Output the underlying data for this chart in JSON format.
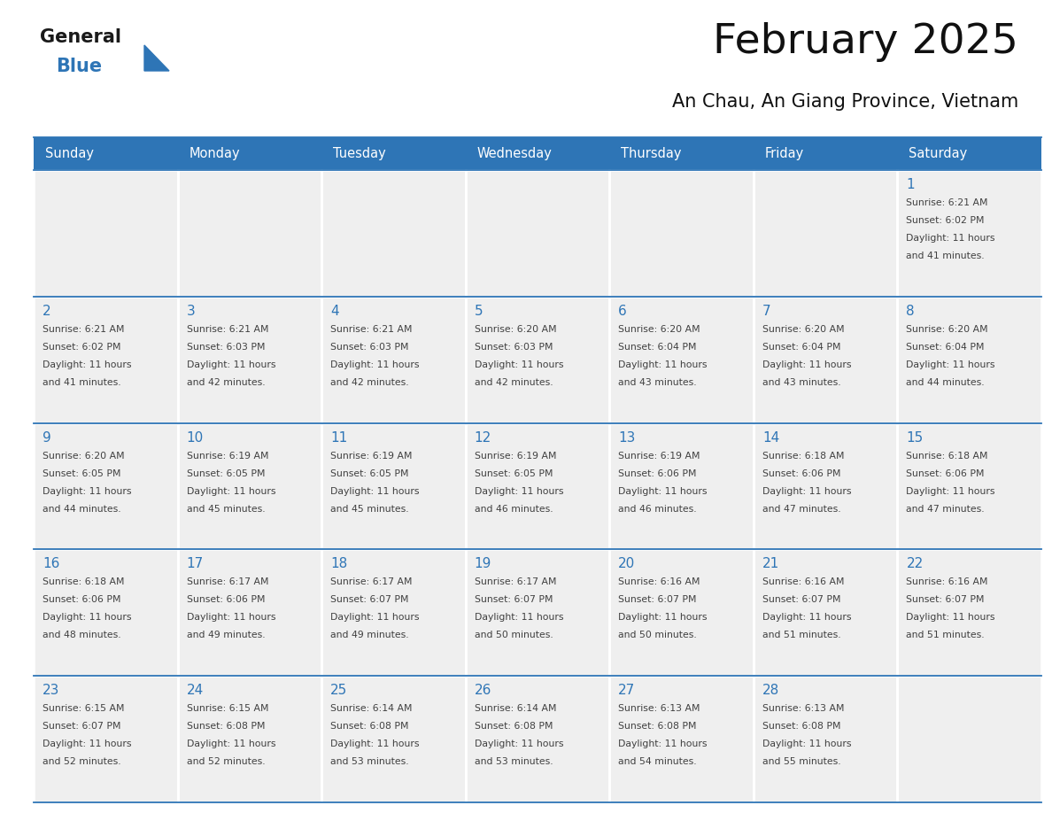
{
  "title": "February 2025",
  "subtitle": "An Chau, An Giang Province, Vietnam",
  "days_of_week": [
    "Sunday",
    "Monday",
    "Tuesday",
    "Wednesday",
    "Thursday",
    "Friday",
    "Saturday"
  ],
  "header_bg": "#2E75B6",
  "header_text": "#FFFFFF",
  "cell_bg": "#EFEFEF",
  "border_color": "#2E75B6",
  "row_border_color": "#2E75B6",
  "day_number_color": "#2E75B6",
  "text_color": "#404040",
  "logo_general_color": "#1a1a1a",
  "logo_blue_color": "#2E75B6",
  "calendar_data": [
    [
      {
        "day": null,
        "info": null
      },
      {
        "day": null,
        "info": null
      },
      {
        "day": null,
        "info": null
      },
      {
        "day": null,
        "info": null
      },
      {
        "day": null,
        "info": null
      },
      {
        "day": null,
        "info": null
      },
      {
        "day": 1,
        "info": "Sunrise: 6:21 AM\nSunset: 6:02 PM\nDaylight: 11 hours\nand 41 minutes."
      }
    ],
    [
      {
        "day": 2,
        "info": "Sunrise: 6:21 AM\nSunset: 6:02 PM\nDaylight: 11 hours\nand 41 minutes."
      },
      {
        "day": 3,
        "info": "Sunrise: 6:21 AM\nSunset: 6:03 PM\nDaylight: 11 hours\nand 42 minutes."
      },
      {
        "day": 4,
        "info": "Sunrise: 6:21 AM\nSunset: 6:03 PM\nDaylight: 11 hours\nand 42 minutes."
      },
      {
        "day": 5,
        "info": "Sunrise: 6:20 AM\nSunset: 6:03 PM\nDaylight: 11 hours\nand 42 minutes."
      },
      {
        "day": 6,
        "info": "Sunrise: 6:20 AM\nSunset: 6:04 PM\nDaylight: 11 hours\nand 43 minutes."
      },
      {
        "day": 7,
        "info": "Sunrise: 6:20 AM\nSunset: 6:04 PM\nDaylight: 11 hours\nand 43 minutes."
      },
      {
        "day": 8,
        "info": "Sunrise: 6:20 AM\nSunset: 6:04 PM\nDaylight: 11 hours\nand 44 minutes."
      }
    ],
    [
      {
        "day": 9,
        "info": "Sunrise: 6:20 AM\nSunset: 6:05 PM\nDaylight: 11 hours\nand 44 minutes."
      },
      {
        "day": 10,
        "info": "Sunrise: 6:19 AM\nSunset: 6:05 PM\nDaylight: 11 hours\nand 45 minutes."
      },
      {
        "day": 11,
        "info": "Sunrise: 6:19 AM\nSunset: 6:05 PM\nDaylight: 11 hours\nand 45 minutes."
      },
      {
        "day": 12,
        "info": "Sunrise: 6:19 AM\nSunset: 6:05 PM\nDaylight: 11 hours\nand 46 minutes."
      },
      {
        "day": 13,
        "info": "Sunrise: 6:19 AM\nSunset: 6:06 PM\nDaylight: 11 hours\nand 46 minutes."
      },
      {
        "day": 14,
        "info": "Sunrise: 6:18 AM\nSunset: 6:06 PM\nDaylight: 11 hours\nand 47 minutes."
      },
      {
        "day": 15,
        "info": "Sunrise: 6:18 AM\nSunset: 6:06 PM\nDaylight: 11 hours\nand 47 minutes."
      }
    ],
    [
      {
        "day": 16,
        "info": "Sunrise: 6:18 AM\nSunset: 6:06 PM\nDaylight: 11 hours\nand 48 minutes."
      },
      {
        "day": 17,
        "info": "Sunrise: 6:17 AM\nSunset: 6:06 PM\nDaylight: 11 hours\nand 49 minutes."
      },
      {
        "day": 18,
        "info": "Sunrise: 6:17 AM\nSunset: 6:07 PM\nDaylight: 11 hours\nand 49 minutes."
      },
      {
        "day": 19,
        "info": "Sunrise: 6:17 AM\nSunset: 6:07 PM\nDaylight: 11 hours\nand 50 minutes."
      },
      {
        "day": 20,
        "info": "Sunrise: 6:16 AM\nSunset: 6:07 PM\nDaylight: 11 hours\nand 50 minutes."
      },
      {
        "day": 21,
        "info": "Sunrise: 6:16 AM\nSunset: 6:07 PM\nDaylight: 11 hours\nand 51 minutes."
      },
      {
        "day": 22,
        "info": "Sunrise: 6:16 AM\nSunset: 6:07 PM\nDaylight: 11 hours\nand 51 minutes."
      }
    ],
    [
      {
        "day": 23,
        "info": "Sunrise: 6:15 AM\nSunset: 6:07 PM\nDaylight: 11 hours\nand 52 minutes."
      },
      {
        "day": 24,
        "info": "Sunrise: 6:15 AM\nSunset: 6:08 PM\nDaylight: 11 hours\nand 52 minutes."
      },
      {
        "day": 25,
        "info": "Sunrise: 6:14 AM\nSunset: 6:08 PM\nDaylight: 11 hours\nand 53 minutes."
      },
      {
        "day": 26,
        "info": "Sunrise: 6:14 AM\nSunset: 6:08 PM\nDaylight: 11 hours\nand 53 minutes."
      },
      {
        "day": 27,
        "info": "Sunrise: 6:13 AM\nSunset: 6:08 PM\nDaylight: 11 hours\nand 54 minutes."
      },
      {
        "day": 28,
        "info": "Sunrise: 6:13 AM\nSunset: 6:08 PM\nDaylight: 11 hours\nand 55 minutes."
      },
      {
        "day": null,
        "info": null
      }
    ]
  ]
}
